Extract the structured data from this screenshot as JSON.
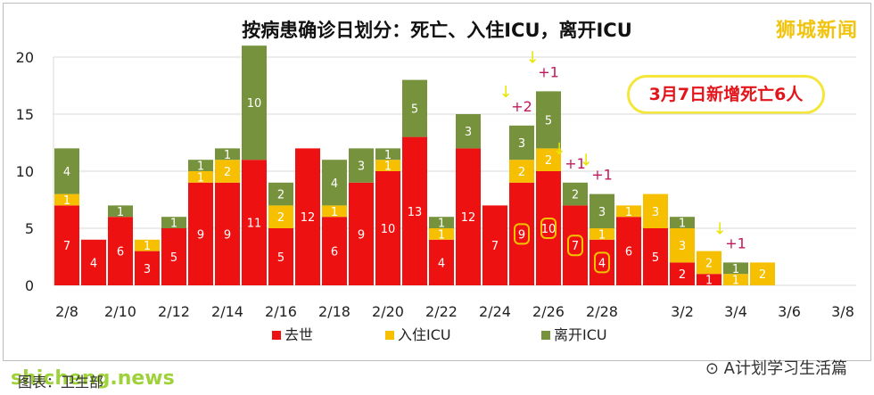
{
  "title": "按病患确诊日划分：死亡、入住ICU，离开ICU",
  "brand_logo": "狮城新闻",
  "callout": "3月7日新增死亡6人",
  "watermark": "A计划学习生活篇",
  "watermark_logo": "shicheng.news",
  "footnote": "图表：卫生部",
  "colors": {
    "deceased": "#ee1111",
    "icu": "#f6c000",
    "left_icu": "#76923c",
    "annotation": "#c2185b",
    "highlight": "#f0c400"
  },
  "chart_data": {
    "type": "bar",
    "stacked": true,
    "ylim": [
      0,
      20
    ],
    "yticks": [
      0,
      5,
      10,
      15,
      20
    ],
    "categories": [
      "2/8",
      "2/9",
      "2/10",
      "2/11",
      "2/12",
      "2/13",
      "2/14",
      "2/15",
      "2/16",
      "2/17",
      "2/18",
      "2/19",
      "2/20",
      "2/21",
      "2/22",
      "2/23",
      "2/24",
      "2/25",
      "2/26",
      "2/27",
      "2/28",
      "2/29",
      "3/1",
      "3/2",
      "3/3",
      "3/4",
      "3/5",
      "3/6",
      "3/7",
      "3/8"
    ],
    "xtick_labels": [
      "2/8",
      "2/10",
      "2/12",
      "2/14",
      "2/16",
      "2/18",
      "2/20",
      "2/22",
      "2/24",
      "2/26",
      "2/28",
      "3/2",
      "3/4",
      "3/6",
      "3/8"
    ],
    "series": [
      {
        "name": "去世",
        "key": "deceased",
        "values": [
          7,
          4,
          6,
          3,
          5,
          9,
          9,
          11,
          5,
          12,
          6,
          9,
          10,
          13,
          4,
          12,
          7,
          9,
          10,
          7,
          4,
          6,
          5,
          2,
          1,
          0,
          0,
          0,
          0,
          0
        ]
      },
      {
        "name": "入住ICU",
        "key": "icu",
        "values": [
          1,
          0,
          0,
          1,
          0,
          1,
          2,
          0,
          2,
          0,
          1,
          0,
          1,
          0,
          1,
          0,
          0,
          2,
          2,
          0,
          1,
          1,
          3,
          3,
          2,
          1,
          2,
          0,
          0,
          0
        ]
      },
      {
        "name": "离开ICU",
        "key": "left_icu",
        "values": [
          4,
          0,
          1,
          0,
          1,
          1,
          1,
          10,
          2,
          0,
          4,
          3,
          1,
          5,
          1,
          3,
          0,
          3,
          5,
          2,
          3,
          0,
          0,
          1,
          0,
          1,
          0,
          0,
          0,
          0
        ]
      }
    ],
    "annotations": [
      {
        "category": "2/25",
        "text": "+2"
      },
      {
        "category": "2/26",
        "text": "+1"
      },
      {
        "category": "2/27",
        "text": "+1"
      },
      {
        "category": "2/28",
        "text": "+1"
      },
      {
        "category": "3/4",
        "text": "+1"
      }
    ],
    "highlighted_labels": [
      "2/25",
      "2/26",
      "2/27",
      "2/28",
      "3/4"
    ],
    "legend_position": "bottom"
  }
}
